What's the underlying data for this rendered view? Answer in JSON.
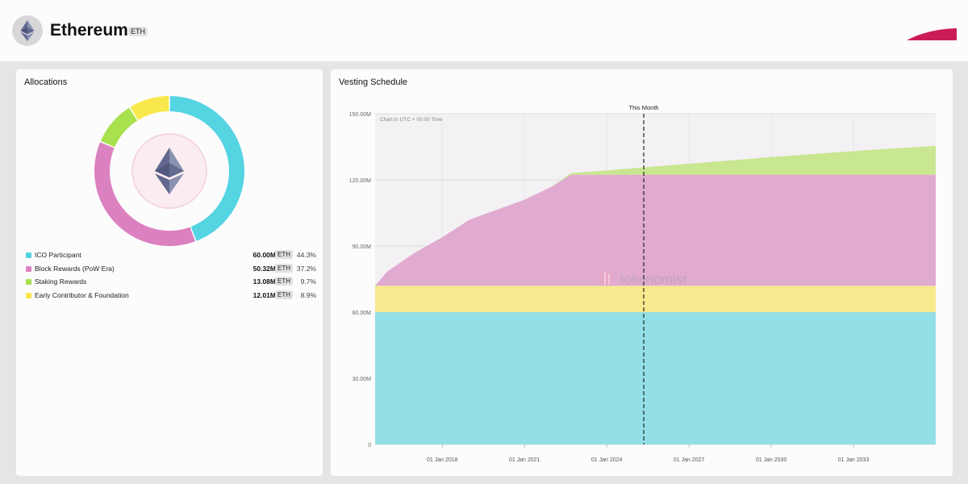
{
  "header": {
    "title": "Ethereum",
    "ticker": "ETH",
    "logo_icon": "ethereum-icon",
    "accent_color": "#cc1c55"
  },
  "allocations": {
    "title": "Allocations",
    "center_icon": "ethereum-icon",
    "items": [
      {
        "label": "ICO Participant",
        "amount": "60.00M",
        "unit": "ETH",
        "percent": "44.3%",
        "color": "#55d4e2"
      },
      {
        "label": "Block Rewards (PoW Era)",
        "amount": "50.32M",
        "unit": "ETH",
        "percent": "37.2%",
        "color": "#dc81bf"
      },
      {
        "label": "Staking Rewards",
        "amount": "13.08M",
        "unit": "ETH",
        "percent": "9.7%",
        "color": "#a9e04e"
      },
      {
        "label": "Early Contributor & Foundation",
        "amount": "12.01M",
        "unit": "ETH",
        "percent": "8.9%",
        "color": "#f8e84d"
      }
    ]
  },
  "vesting": {
    "title": "Vesting Schedule",
    "note": "Chart in UTC + 00:00 Time",
    "marker_label": "This Month",
    "watermark": "tokenomist"
  },
  "chart_data": [
    {
      "type": "pie",
      "title": "Allocations",
      "categories": [
        "ICO Participant",
        "Block Rewards (PoW Era)",
        "Staking Rewards",
        "Early Contributor & Foundation"
      ],
      "values": [
        44.3,
        37.2,
        9.7,
        8.9
      ],
      "colors": [
        "#55d4e2",
        "#dc81bf",
        "#a9e04e",
        "#f8e84d"
      ],
      "donut": true
    },
    {
      "type": "area",
      "title": "Vesting Schedule",
      "stacked": true,
      "x_ticks": [
        "01 Jan 2018",
        "01 Jan 2021",
        "01 Jan 2024",
        "01 Jan 2027",
        "01 Jan 2030",
        "01 Jan 2033"
      ],
      "y_ticks": [
        "0",
        "30.00M",
        "60.00M",
        "90.00M",
        "120.00M",
        "150.00M"
      ],
      "ylim": [
        0,
        150
      ],
      "xlim": [
        2015.55,
        2036.0
      ],
      "x": [
        2015.55,
        2016.0,
        2017.0,
        2018.0,
        2019.0,
        2020.0,
        2021.0,
        2022.0,
        2022.7,
        2024.0,
        2026.0,
        2028.0,
        2030.0,
        2032.0,
        2034.0,
        2036.0
      ],
      "series": [
        {
          "color": "#93dfe6",
          "values": [
            60,
            60,
            60,
            60,
            60,
            60,
            60,
            60,
            60,
            60,
            60,
            60,
            60,
            60,
            60,
            60
          ]
        },
        {
          "color": "#f7e98e",
          "values": [
            12,
            12,
            12,
            12,
            12,
            12,
            12,
            12,
            12,
            12,
            12,
            12,
            12,
            12,
            12,
            12
          ]
        },
        {
          "color": "#e1aad0",
          "values": [
            0,
            6.5,
            15,
            22,
            30,
            34.5,
            39,
            45,
            50.32,
            50.32,
            50.32,
            50.32,
            50.32,
            50.32,
            50.32,
            50.32
          ]
        },
        {
          "color": "#c9e690",
          "values": [
            0,
            0,
            0,
            0,
            0,
            0,
            0,
            0,
            0.8,
            2.0,
            4.0,
            6.0,
            8.0,
            9.8,
            11.6,
            13.08
          ]
        }
      ],
      "marker_x": 2025.35,
      "marker_label": "This Month",
      "grid": true
    }
  ]
}
